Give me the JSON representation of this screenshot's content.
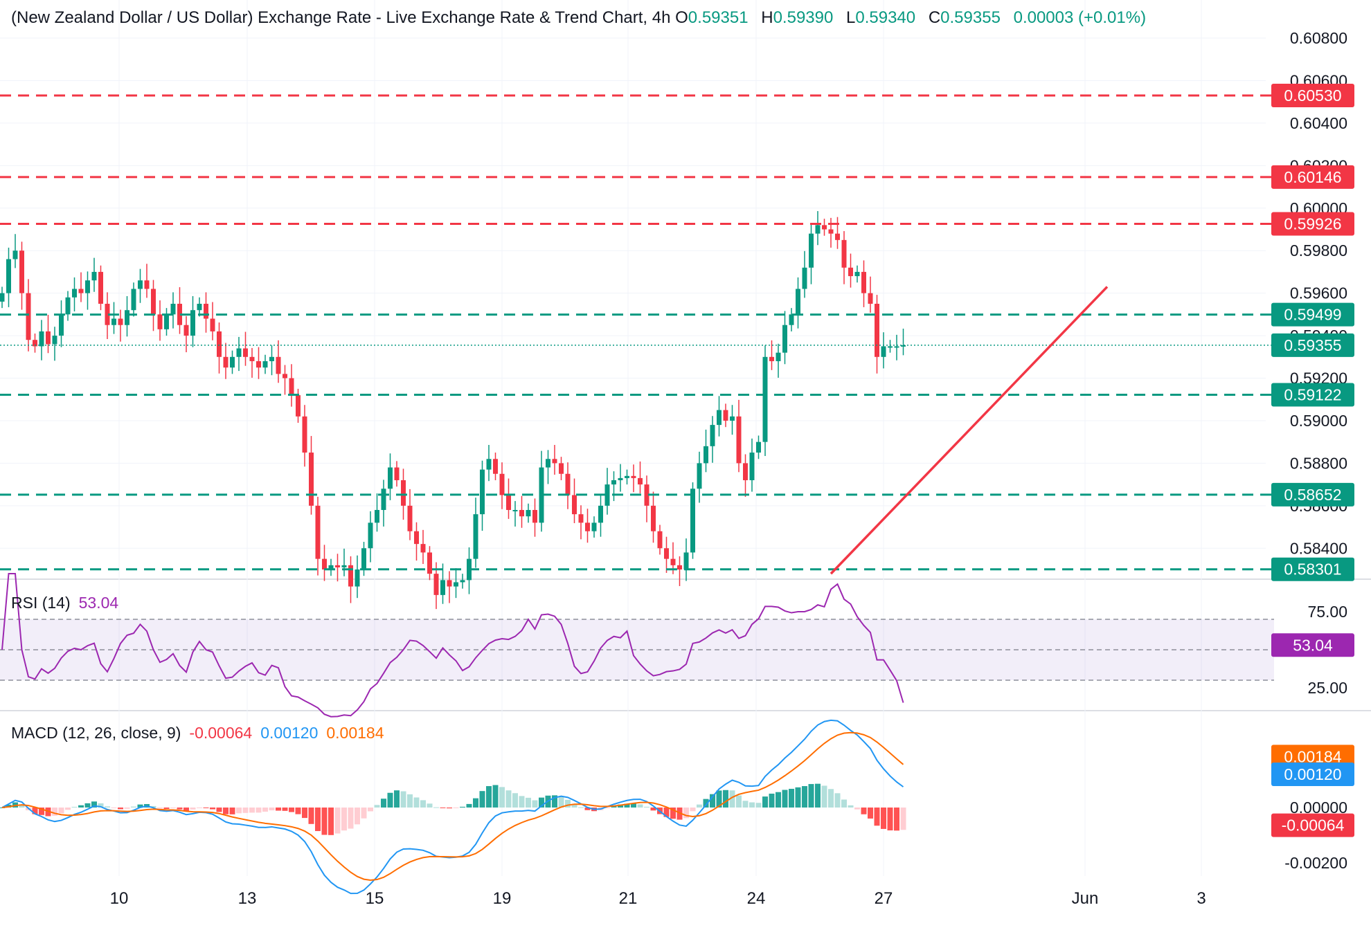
{
  "header": {
    "title": "(New Zealand Dollar / US Dollar) Exchange Rate - Live Exchange Rate & Trend Chart, 4h",
    "o_label": "O",
    "o_value": "0.59351",
    "h_label": "H",
    "h_value": "0.59390",
    "l_label": "L",
    "l_value": "0.59340",
    "c_label": "C",
    "c_value": "0.59355",
    "change": "0.00003 (+0.01%)"
  },
  "rsi": {
    "label": "RSI (14)",
    "value": "53.04",
    "ticks": [
      "75.00",
      "25.00"
    ],
    "color": "#9c27b0"
  },
  "macd": {
    "label": "MACD (12, 26, close, 9)",
    "hist_value": "-0.00064",
    "macd_value": "0.00120",
    "signal_value": "0.00184",
    "ticks": [
      "0.00000",
      "-0.00200"
    ],
    "macd_color": "#2196f3",
    "signal_color": "#ff6d00"
  },
  "colors": {
    "up": "#089981",
    "down": "#f23645",
    "resistance": "#f23645",
    "support": "#089981"
  },
  "chart_data": {
    "type": "candlestick",
    "timeframe": "4h",
    "price_axis_ticks": [
      "0.60800",
      "0.60600",
      "0.60400",
      "0.60200",
      "0.60000",
      "0.59800",
      "0.59600",
      "0.59400",
      "0.59200",
      "0.59000",
      "0.58800",
      "0.58600",
      "0.58400"
    ],
    "x_tick_labels": [
      "10",
      "13",
      "15",
      "19",
      "21",
      "24",
      "27",
      "Jun",
      "3"
    ],
    "levels": [
      {
        "value": "0.60530",
        "kind": "resistance"
      },
      {
        "value": "0.60146",
        "kind": "resistance"
      },
      {
        "value": "0.59926",
        "kind": "resistance"
      },
      {
        "value": "0.59499",
        "kind": "support"
      },
      {
        "value": "0.59122",
        "kind": "support"
      },
      {
        "value": "0.58652",
        "kind": "support"
      },
      {
        "value": "0.58301",
        "kind": "support"
      }
    ],
    "last_price": "0.59355",
    "trendline": {
      "from": {
        "bar": 126,
        "price": 0.5828
      },
      "to": {
        "bar": 168,
        "price": 0.5963
      }
    },
    "closes": [
      0.596,
      0.5976,
      0.598,
      0.596,
      0.5938,
      0.5935,
      0.5942,
      0.5936,
      0.594,
      0.595,
      0.5958,
      0.5962,
      0.596,
      0.5966,
      0.597,
      0.5955,
      0.5945,
      0.5948,
      0.5945,
      0.5952,
      0.5962,
      0.5966,
      0.5962,
      0.595,
      0.5943,
      0.595,
      0.5955,
      0.5945,
      0.594,
      0.5952,
      0.5955,
      0.5948,
      0.5942,
      0.593,
      0.5925,
      0.593,
      0.5934,
      0.593,
      0.5928,
      0.5925,
      0.5928,
      0.593,
      0.5922,
      0.592,
      0.5912,
      0.5902,
      0.5885,
      0.586,
      0.5835,
      0.583,
      0.5832,
      0.5831,
      0.5832,
      0.5822,
      0.583,
      0.584,
      0.5852,
      0.5858,
      0.5868,
      0.5878,
      0.5872,
      0.586,
      0.5848,
      0.5842,
      0.5838,
      0.5828,
      0.5818,
      0.5825,
      0.5822,
      0.5824,
      0.5825,
      0.5835,
      0.5856,
      0.5877,
      0.5882,
      0.5875,
      0.5865,
      0.5858,
      0.5858,
      0.5855,
      0.5858,
      0.5852,
      0.5878,
      0.5882,
      0.588,
      0.5875,
      0.5865,
      0.5856,
      0.5852,
      0.5848,
      0.5852,
      0.586,
      0.587,
      0.5872,
      0.5873,
      0.5874,
      0.5873,
      0.587,
      0.586,
      0.5848,
      0.584,
      0.5835,
      0.5832,
      0.583,
      0.5838,
      0.5868,
      0.588,
      0.5888,
      0.5898,
      0.5905,
      0.59,
      0.5902,
      0.588,
      0.5872,
      0.5885,
      0.589,
      0.593,
      0.5928,
      0.5932,
      0.5945,
      0.595,
      0.5962,
      0.5972,
      0.5988,
      0.5992,
      0.599,
      0.5988,
      0.5985,
      0.5972,
      0.5968,
      0.597,
      0.596,
      0.5955,
      0.593,
      0.5935,
      0.5935,
      0.5935,
      0.59355
    ]
  }
}
